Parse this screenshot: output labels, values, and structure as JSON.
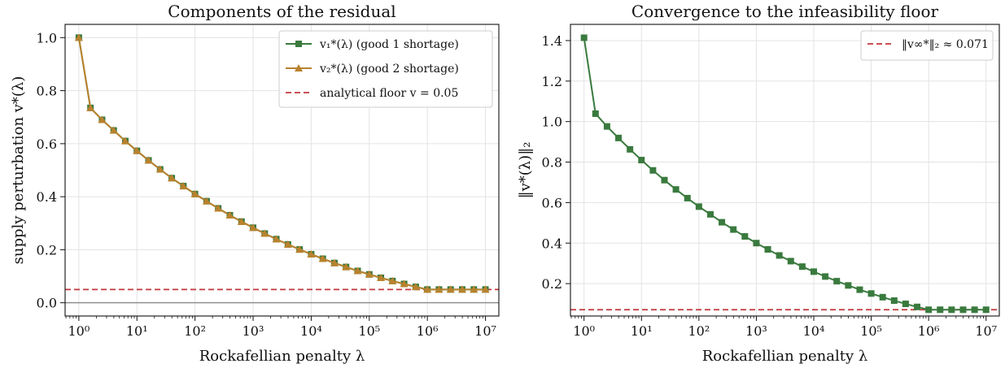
{
  "chart_data": [
    {
      "type": "line",
      "title": "Components of the residual",
      "xlabel": "Rockafellian penalty λ",
      "ylabel": "supply perturbation v*(λ)",
      "x_scale": "log",
      "xlim": [
        0.58,
        17000000
      ],
      "ylim": [
        -0.05,
        1.05
      ],
      "xticks": [
        1,
        10,
        100,
        1000,
        10000,
        100000,
        1000000,
        10000000
      ],
      "xtick_labels": [
        "10⁰",
        "10¹",
        "10²",
        "10³",
        "10⁴",
        "10⁵",
        "10⁶",
        "10⁷"
      ],
      "yticks": [
        0.0,
        0.2,
        0.4,
        0.6,
        0.8,
        1.0
      ],
      "ytick_labels": [
        "0.0",
        "0.2",
        "0.4",
        "0.6",
        "0.8",
        "1.0"
      ],
      "grid": true,
      "legend_position": "top-right",
      "x": [
        1,
        1.585,
        2.512,
        3.981,
        6.31,
        10,
        15.85,
        25.12,
        39.81,
        63.1,
        100,
        158.5,
        251.2,
        398.1,
        631,
        1000,
        1585,
        2512,
        3981,
        6310,
        10000,
        15850,
        25120,
        39810,
        63100,
        100000,
        158500,
        251200,
        398100,
        631000,
        1000000,
        1585000,
        2512000,
        3981000,
        6310000,
        10000000
      ],
      "series": [
        {
          "name": "v₁*(λ) (good 1 shortage)",
          "color": "#3a7a3e",
          "marker": "square",
          "values": [
            1.0,
            0.735,
            0.69,
            0.65,
            0.61,
            0.573,
            0.537,
            0.503,
            0.47,
            0.44,
            0.41,
            0.383,
            0.356,
            0.33,
            0.306,
            0.283,
            0.261,
            0.24,
            0.22,
            0.201,
            0.183,
            0.166,
            0.15,
            0.135,
            0.12,
            0.107,
            0.094,
            0.082,
            0.071,
            0.06,
            0.05,
            0.05,
            0.05,
            0.05,
            0.05,
            0.05
          ]
        },
        {
          "name": "v₂*(λ) (good 2 shortage)",
          "color": "#b9822e",
          "marker": "triangle",
          "values": [
            1.0,
            0.735,
            0.69,
            0.65,
            0.61,
            0.573,
            0.537,
            0.503,
            0.47,
            0.44,
            0.41,
            0.383,
            0.356,
            0.33,
            0.306,
            0.283,
            0.261,
            0.24,
            0.22,
            0.201,
            0.183,
            0.166,
            0.15,
            0.135,
            0.12,
            0.107,
            0.094,
            0.082,
            0.071,
            0.06,
            0.05,
            0.05,
            0.05,
            0.05,
            0.05,
            0.05
          ]
        }
      ],
      "reference_lines": [
        {
          "name": "analytical floor v = 0.05",
          "y": 0.05,
          "color": "#c0383b",
          "style": "dashed"
        },
        {
          "name": "",
          "y": 0.0,
          "color": "#777777",
          "style": "solid"
        }
      ]
    },
    {
      "type": "line",
      "title": "Convergence to the infeasibility floor",
      "xlabel": "Rockafellian penalty λ",
      "ylabel": "‖v*(λ)‖₂",
      "x_scale": "log",
      "xlim": [
        0.58,
        17000000
      ],
      "ylim": [
        0.04,
        1.48
      ],
      "xticks": [
        1,
        10,
        100,
        1000,
        10000,
        100000,
        1000000,
        10000000
      ],
      "xtick_labels": [
        "10⁰",
        "10¹",
        "10²",
        "10³",
        "10⁴",
        "10⁵",
        "10⁶",
        "10⁷"
      ],
      "yticks": [
        0.2,
        0.4,
        0.6,
        0.8,
        1.0,
        1.2,
        1.4
      ],
      "ytick_labels": [
        "0.2",
        "0.4",
        "0.6",
        "0.8",
        "1.0",
        "1.2",
        "1.4"
      ],
      "grid": true,
      "legend_position": "top-right",
      "x": [
        1,
        1.585,
        2.512,
        3.981,
        6.31,
        10,
        15.85,
        25.12,
        39.81,
        63.1,
        100,
        158.5,
        251.2,
        398.1,
        631,
        1000,
        1585,
        2512,
        3981,
        6310,
        10000,
        15850,
        25120,
        39810,
        63100,
        100000,
        158500,
        251200,
        398100,
        631000,
        1000000,
        1585000,
        2512000,
        3981000,
        6310000,
        10000000
      ],
      "series": [
        {
          "name": "",
          "color": "#3a7a3e",
          "marker": "square",
          "values": [
            1.414,
            1.039,
            0.976,
            0.919,
            0.863,
            0.81,
            0.759,
            0.711,
            0.665,
            0.622,
            0.58,
            0.542,
            0.503,
            0.467,
            0.433,
            0.4,
            0.369,
            0.339,
            0.311,
            0.284,
            0.259,
            0.235,
            0.212,
            0.191,
            0.17,
            0.151,
            0.133,
            0.116,
            0.1,
            0.085,
            0.071,
            0.071,
            0.071,
            0.071,
            0.071,
            0.071
          ]
        }
      ],
      "reference_lines": [
        {
          "name": "‖v∞*‖₂ ≈ 0.071",
          "y": 0.071,
          "color": "#c0383b",
          "style": "dashed"
        }
      ]
    }
  ]
}
